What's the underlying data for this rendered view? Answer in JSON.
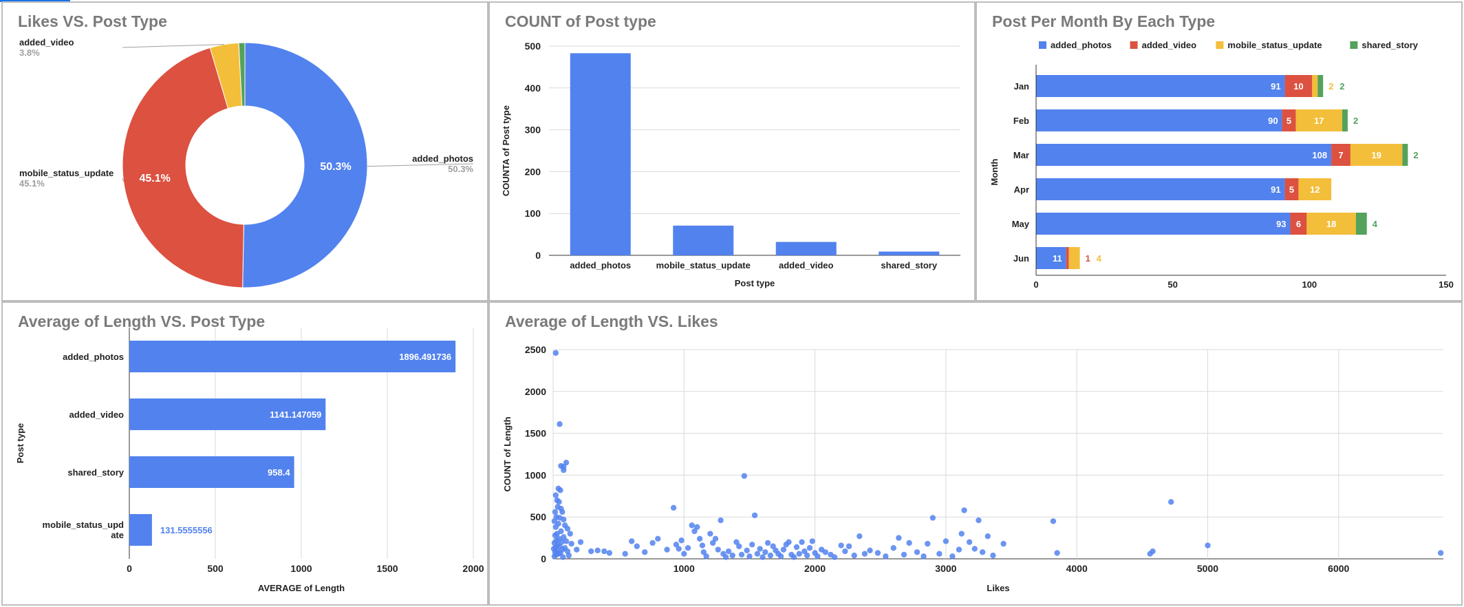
{
  "colors": {
    "photos": "#5282EE",
    "video": "#DC5140",
    "status": "#F3BE3A",
    "story": "#54A25B",
    "title": "#7a7a7a",
    "grid": "#d9d9d9",
    "axis": "#333333"
  },
  "chart_data": [
    {
      "id": "likes_vs_post_type",
      "type": "pie",
      "donut": true,
      "title": "Likes VS. Post Type",
      "slices": [
        {
          "label": "added_photos",
          "percent": 50.3,
          "percent_text": "50.3%",
          "color": "#5282EE"
        },
        {
          "label": "mobile_status_update",
          "percent": 45.1,
          "percent_text": "45.1%",
          "color": "#DC5140"
        },
        {
          "label": "added_video",
          "percent": 3.8,
          "percent_text": "3.8%",
          "color": "#F3BE3A"
        },
        {
          "label": "",
          "percent": 0.8,
          "percent_text": "",
          "color": "#54A25B"
        }
      ]
    },
    {
      "id": "count_of_post_type",
      "type": "bar",
      "title": "COUNT of Post type",
      "xlabel": "Post type",
      "ylabel": "COUNTA of Post type",
      "categories": [
        "added_photos",
        "mobile_status_update",
        "added_video",
        "shared_story"
      ],
      "values": [
        483,
        71,
        32,
        9
      ],
      "ylim": [
        0,
        500
      ],
      "yticks": [
        0,
        100,
        200,
        300,
        400,
        500
      ],
      "grid": true
    },
    {
      "id": "post_per_month",
      "type": "bar",
      "orientation": "horizontal",
      "stacked": true,
      "title": "Post Per Month By Each Type",
      "ylabel": "Month",
      "legend_position": "top",
      "categories": [
        "Jan",
        "Feb",
        "Mar",
        "Apr",
        "May",
        "Jun"
      ],
      "series": [
        {
          "name": "added_photos",
          "color": "#5282EE",
          "values": [
            91,
            90,
            108,
            91,
            93,
            11
          ],
          "labels": [
            "91",
            "90",
            "108",
            "91",
            "93",
            "11"
          ]
        },
        {
          "name": "added_video",
          "color": "#DC5140",
          "values": [
            10,
            5,
            7,
            5,
            6,
            1
          ],
          "labels": [
            "10",
            "5",
            "7",
            "5",
            "6",
            "1"
          ]
        },
        {
          "name": "mobile_status_update",
          "color": "#F3BE3A",
          "values": [
            2,
            17,
            19,
            12,
            18,
            4
          ],
          "labels": [
            "2",
            "17",
            "19",
            "12",
            "18",
            "4"
          ]
        },
        {
          "name": "shared_story",
          "color": "#54A25B",
          "values": [
            2,
            2,
            2,
            0,
            4,
            0
          ],
          "labels": [
            "2",
            "2",
            "2",
            "",
            "4",
            ""
          ]
        }
      ],
      "xlim": [
        0,
        150
      ],
      "xticks": [
        0,
        50,
        100,
        150
      ],
      "grid": false
    },
    {
      "id": "avg_length_vs_post_type",
      "type": "bar",
      "orientation": "horizontal",
      "title": "Average of Length VS. Post Type",
      "xlabel": "AVERAGE of Length",
      "ylabel": "Post type",
      "categories": [
        "added_photos",
        "added_video",
        "shared_story",
        "mobile_status_update"
      ],
      "values": [
        1896.491736,
        1141.147059,
        958.4,
        131.5555556
      ],
      "value_labels": [
        "1896.491736",
        "1141.147059",
        "958.4",
        "131.5555556"
      ],
      "xlim": [
        0,
        2000
      ],
      "xticks": [
        0,
        500,
        1000,
        1500,
        2000
      ],
      "grid": true
    },
    {
      "id": "avg_length_vs_likes",
      "type": "scatter",
      "title": "Average of Length VS. Likes",
      "xlabel": "Likes",
      "ylabel": "COUNT of Length",
      "xlim": [
        0,
        6800
      ],
      "ylim": [
        0,
        2500
      ],
      "xticks": [
        1000,
        2000,
        3000,
        4000,
        5000,
        6000
      ],
      "yticks": [
        0,
        500,
        1000,
        1500,
        2000,
        2500
      ],
      "grid": true,
      "points": [
        [
          20,
          2460
        ],
        [
          50,
          1610
        ],
        [
          60,
          1110
        ],
        [
          80,
          1100
        ],
        [
          100,
          1150
        ],
        [
          80,
          1060
        ],
        [
          40,
          840
        ],
        [
          55,
          820
        ],
        [
          20,
          760
        ],
        [
          30,
          700
        ],
        [
          45,
          680
        ],
        [
          35,
          620
        ],
        [
          60,
          600
        ],
        [
          15,
          560
        ],
        [
          70,
          560
        ],
        [
          25,
          500
        ],
        [
          50,
          490
        ],
        [
          80,
          470
        ],
        [
          10,
          450
        ],
        [
          40,
          420
        ],
        [
          90,
          400
        ],
        [
          20,
          380
        ],
        [
          110,
          360
        ],
        [
          60,
          330
        ],
        [
          30,
          300
        ],
        [
          130,
          300
        ],
        [
          15,
          280
        ],
        [
          80,
          260
        ],
        [
          45,
          240
        ],
        [
          25,
          220
        ],
        [
          100,
          210
        ],
        [
          65,
          200
        ],
        [
          10,
          190
        ],
        [
          140,
          180
        ],
        [
          35,
          170
        ],
        [
          50,
          150
        ],
        [
          20,
          140
        ],
        [
          90,
          130
        ],
        [
          5,
          120
        ],
        [
          70,
          110
        ],
        [
          30,
          100
        ],
        [
          110,
          90
        ],
        [
          15,
          80
        ],
        [
          55,
          70
        ],
        [
          40,
          60
        ],
        [
          25,
          50
        ],
        [
          120,
          40
        ],
        [
          10,
          30
        ],
        [
          75,
          20
        ],
        [
          180,
          110
        ],
        [
          210,
          200
        ],
        [
          290,
          90
        ],
        [
          340,
          100
        ],
        [
          390,
          90
        ],
        [
          430,
          70
        ],
        [
          550,
          60
        ],
        [
          600,
          210
        ],
        [
          640,
          150
        ],
        [
          700,
          80
        ],
        [
          760,
          190
        ],
        [
          800,
          240
        ],
        [
          870,
          110
        ],
        [
          920,
          610
        ],
        [
          940,
          170
        ],
        [
          960,
          120
        ],
        [
          980,
          220
        ],
        [
          1000,
          60
        ],
        [
          1030,
          130
        ],
        [
          1060,
          400
        ],
        [
          1080,
          330
        ],
        [
          1100,
          380
        ],
        [
          1120,
          240
        ],
        [
          1140,
          160
        ],
        [
          1150,
          80
        ],
        [
          1170,
          30
        ],
        [
          1200,
          300
        ],
        [
          1220,
          190
        ],
        [
          1240,
          240
        ],
        [
          1260,
          110
        ],
        [
          1280,
          460
        ],
        [
          1300,
          60
        ],
        [
          1320,
          20
        ],
        [
          1340,
          90
        ],
        [
          1370,
          40
        ],
        [
          1400,
          200
        ],
        [
          1420,
          150
        ],
        [
          1440,
          50
        ],
        [
          1460,
          990
        ],
        [
          1480,
          100
        ],
        [
          1500,
          30
        ],
        [
          1520,
          170
        ],
        [
          1540,
          520
        ],
        [
          1560,
          60
        ],
        [
          1580,
          120
        ],
        [
          1600,
          20
        ],
        [
          1620,
          80
        ],
        [
          1640,
          190
        ],
        [
          1660,
          40
        ],
        [
          1680,
          150
        ],
        [
          1700,
          100
        ],
        [
          1720,
          60
        ],
        [
          1740,
          30
        ],
        [
          1760,
          110
        ],
        [
          1780,
          170
        ],
        [
          1800,
          200
        ],
        [
          1820,
          50
        ],
        [
          1840,
          20
        ],
        [
          1860,
          140
        ],
        [
          1880,
          60
        ],
        [
          1900,
          200
        ],
        [
          1920,
          90
        ],
        [
          1940,
          40
        ],
        [
          1960,
          130
        ],
        [
          1980,
          210
        ],
        [
          2000,
          70
        ],
        [
          2020,
          30
        ],
        [
          2050,
          110
        ],
        [
          2080,
          80
        ],
        [
          2120,
          50
        ],
        [
          2150,
          20
        ],
        [
          2200,
          160
        ],
        [
          2230,
          90
        ],
        [
          2260,
          150
        ],
        [
          2300,
          40
        ],
        [
          2340,
          270
        ],
        [
          2380,
          60
        ],
        [
          2420,
          100
        ],
        [
          2480,
          70
        ],
        [
          2540,
          30
        ],
        [
          2600,
          130
        ],
        [
          2640,
          250
        ],
        [
          2680,
          50
        ],
        [
          2720,
          190
        ],
        [
          2780,
          80
        ],
        [
          2830,
          30
        ],
        [
          2860,
          180
        ],
        [
          2900,
          490
        ],
        [
          2950,
          60
        ],
        [
          3000,
          210
        ],
        [
          3050,
          30
        ],
        [
          3100,
          110
        ],
        [
          3120,
          300
        ],
        [
          3140,
          580
        ],
        [
          3180,
          200
        ],
        [
          3220,
          120
        ],
        [
          3250,
          460
        ],
        [
          3280,
          80
        ],
        [
          3320,
          270
        ],
        [
          3360,
          40
        ],
        [
          3440,
          180
        ],
        [
          3820,
          450
        ],
        [
          3850,
          70
        ],
        [
          4560,
          60
        ],
        [
          4580,
          90
        ],
        [
          4720,
          680
        ],
        [
          5000,
          160
        ],
        [
          6780,
          70
        ]
      ]
    }
  ]
}
